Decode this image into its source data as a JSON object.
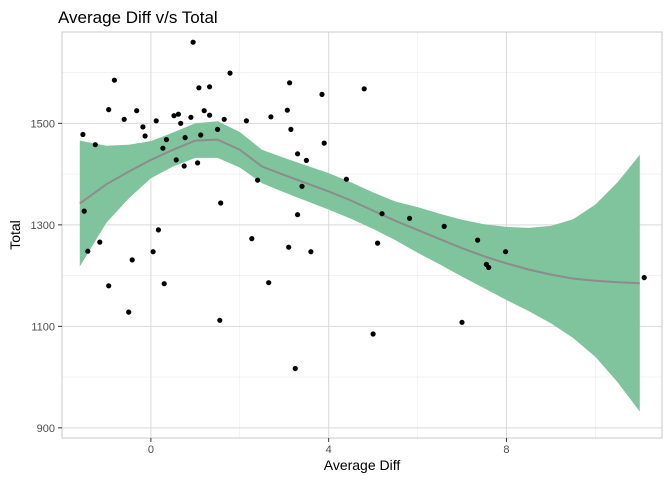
{
  "chart_data": {
    "type": "scatter",
    "title": "Average Diff v/s Total",
    "xlabel": "Average Diff",
    "ylabel": "Total",
    "xlim": [
      -2.0,
      11.5
    ],
    "ylim": [
      880,
      1680
    ],
    "x_ticks": [
      0,
      4,
      8
    ],
    "y_ticks": [
      900,
      1100,
      1300,
      1500
    ],
    "x_minor_ticks": [
      -2,
      2,
      6,
      10
    ],
    "y_minor_ticks": [
      1000,
      1200,
      1400,
      1600
    ],
    "grid": true,
    "colors": {
      "points": "#000000",
      "ribbon": "#7fc49d",
      "smooth_line": "#8c8c8c",
      "grid_major": "#d9d9d9",
      "grid_minor": "#ebebeb",
      "panel_border": "#c8c8c8"
    },
    "points": [
      [
        -1.53,
        1478
      ],
      [
        -1.5,
        1327
      ],
      [
        -1.42,
        1248
      ],
      [
        -1.25,
        1458
      ],
      [
        -1.15,
        1266
      ],
      [
        -0.95,
        1180
      ],
      [
        -0.95,
        1527
      ],
      [
        -0.82,
        1585
      ],
      [
        -0.6,
        1508
      ],
      [
        -0.5,
        1128
      ],
      [
        -0.42,
        1231
      ],
      [
        -0.32,
        1525
      ],
      [
        -0.18,
        1493
      ],
      [
        -0.13,
        1475
      ],
      [
        0.05,
        1247
      ],
      [
        0.12,
        1505
      ],
      [
        0.17,
        1290
      ],
      [
        0.27,
        1451
      ],
      [
        0.3,
        1184
      ],
      [
        0.35,
        1468
      ],
      [
        0.52,
        1515
      ],
      [
        0.57,
        1428
      ],
      [
        0.62,
        1518
      ],
      [
        0.67,
        1500
      ],
      [
        0.75,
        1416
      ],
      [
        0.77,
        1472
      ],
      [
        0.9,
        1512
      ],
      [
        0.95,
        1660
      ],
      [
        1.05,
        1422
      ],
      [
        1.08,
        1570
      ],
      [
        1.12,
        1477
      ],
      [
        1.2,
        1525
      ],
      [
        1.32,
        1572
      ],
      [
        1.32,
        1516
      ],
      [
        1.5,
        1488
      ],
      [
        1.55,
        1112
      ],
      [
        1.57,
        1343
      ],
      [
        1.65,
        1508
      ],
      [
        1.78,
        1599
      ],
      [
        2.15,
        1505
      ],
      [
        2.27,
        1273
      ],
      [
        2.4,
        1388
      ],
      [
        2.65,
        1186
      ],
      [
        2.7,
        1513
      ],
      [
        3.07,
        1526
      ],
      [
        3.1,
        1256
      ],
      [
        3.12,
        1580
      ],
      [
        3.15,
        1488
      ],
      [
        3.25,
        1017
      ],
      [
        3.3,
        1440
      ],
      [
        3.3,
        1320
      ],
      [
        3.4,
        1376
      ],
      [
        3.5,
        1427
      ],
      [
        3.6,
        1247
      ],
      [
        3.85,
        1557
      ],
      [
        3.9,
        1461
      ],
      [
        4.4,
        1390
      ],
      [
        4.8,
        1568
      ],
      [
        5.0,
        1085
      ],
      [
        5.1,
        1264
      ],
      [
        5.2,
        1322
      ],
      [
        5.82,
        1313
      ],
      [
        6.6,
        1297
      ],
      [
        7.0,
        1108
      ],
      [
        7.35,
        1270
      ],
      [
        7.55,
        1222
      ],
      [
        7.6,
        1216
      ],
      [
        7.98,
        1247
      ],
      [
        11.1,
        1196
      ]
    ],
    "smooth": {
      "x": [
        -1.6,
        -1.0,
        -0.5,
        0.0,
        0.5,
        1.0,
        1.5,
        2.0,
        2.5,
        3.0,
        3.5,
        4.0,
        4.5,
        5.0,
        5.5,
        6.0,
        6.5,
        7.0,
        7.5,
        8.0,
        8.5,
        9.0,
        9.5,
        10.0,
        10.5,
        11.0
      ],
      "y": [
        1342,
        1380,
        1405,
        1428,
        1448,
        1466,
        1468,
        1448,
        1415,
        1398,
        1382,
        1366,
        1348,
        1328,
        1308,
        1290,
        1272,
        1254,
        1238,
        1224,
        1212,
        1202,
        1194,
        1190,
        1187,
        1185
      ],
      "lower": [
        1218,
        1304,
        1352,
        1392,
        1415,
        1432,
        1432,
        1413,
        1382,
        1364,
        1347,
        1330,
        1312,
        1292,
        1270,
        1245,
        1222,
        1198,
        1175,
        1152,
        1130,
        1106,
        1077,
        1040,
        990,
        932
      ],
      "upper": [
        1466,
        1456,
        1458,
        1465,
        1482,
        1500,
        1504,
        1483,
        1448,
        1432,
        1417,
        1402,
        1384,
        1364,
        1346,
        1335,
        1322,
        1310,
        1301,
        1296,
        1294,
        1298,
        1311,
        1340,
        1384,
        1438
      ]
    }
  }
}
